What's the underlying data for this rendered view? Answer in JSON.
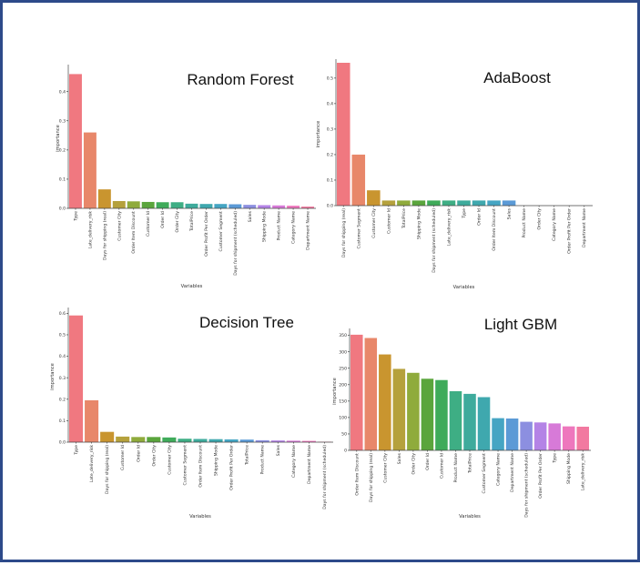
{
  "colors": [
    "#f07880",
    "#e8876a",
    "#c9952f",
    "#b5a13c",
    "#8fab3c",
    "#5aa53c",
    "#3fab5a",
    "#3eae84",
    "#3eab9c",
    "#3fa8ae",
    "#45a5c3",
    "#5b9ad6",
    "#8c8fe0",
    "#b483e6",
    "#d77ad8",
    "#ee77bd",
    "#f279a0"
  ],
  "chart_data": [
    {
      "id": "rf",
      "type": "bar",
      "title": "Random Forest",
      "xlabel": "Variables",
      "ylabel": "importance",
      "ylim": [
        0,
        0.48
      ],
      "yticks": [
        0.0,
        0.1,
        0.2,
        0.3,
        0.4
      ],
      "ytick_labels": [
        "0.0",
        "0.1",
        "0.2",
        "0.3",
        "0.4"
      ],
      "categories": [
        "Type",
        "Late_delivery_risk",
        "Days for shipping (real)",
        "Customer City",
        "Order Item Discount",
        "Customer Id",
        "Order Id",
        "Order City",
        "TotalPrice",
        "Order Profit Per Order",
        "Customer Segment",
        "Days for shipment (scheduled)",
        "Sales",
        "Shipping Mode",
        "Product Name",
        "Category Name",
        "Department Name"
      ],
      "values": [
        0.46,
        0.26,
        0.065,
        0.025,
        0.024,
        0.022,
        0.021,
        0.021,
        0.016,
        0.015,
        0.015,
        0.014,
        0.012,
        0.011,
        0.01,
        0.009,
        0.006
      ],
      "grid": false
    },
    {
      "id": "ada",
      "type": "bar",
      "title": "AdaBoost",
      "xlabel": "Variables",
      "ylabel": "importance",
      "ylim": [
        0,
        0.56
      ],
      "yticks": [
        0.0,
        0.1,
        0.2,
        0.3,
        0.4,
        0.5
      ],
      "ytick_labels": [
        "0.0",
        "0.1",
        "0.2",
        "0.3",
        "0.4",
        "0.5"
      ],
      "categories": [
        "Days for shipping (real)",
        "Customer Segment",
        "Customer City",
        "Customer Id",
        "TotalPrice",
        "Shipping Mode",
        "Days for shipment (scheduled)",
        "Late_delivery_risk",
        "Type",
        "Order Id",
        "Order Item Discount",
        "Sales",
        "Product Name",
        "Order City",
        "Category Name",
        "Order Profit Per Order",
        "Department Name"
      ],
      "values": [
        0.56,
        0.2,
        0.06,
        0.02,
        0.02,
        0.02,
        0.02,
        0.02,
        0.02,
        0.02,
        0.02,
        0.02,
        0.0,
        0.0,
        0.0,
        0.0,
        0.0
      ],
      "grid": false
    },
    {
      "id": "dt",
      "type": "bar",
      "title": "Decision Tree",
      "xlabel": "Variables",
      "ylabel": "importance",
      "ylim": [
        0,
        0.61
      ],
      "yticks": [
        0.0,
        0.1,
        0.2,
        0.3,
        0.4,
        0.5,
        0.6
      ],
      "ytick_labels": [
        "0.0",
        "0.1",
        "0.2",
        "0.3",
        "0.4",
        "0.5",
        "0.6"
      ],
      "categories": [
        "Type",
        "Late_delivery_risk",
        "Days for shipping (real)",
        "Customer Id",
        "Order Id",
        "Order City",
        "Customer City",
        "Customer Segment",
        "Order Item Discount",
        "Shipping Mode",
        "Order Profit Per Order",
        "TotalPrice",
        "Product Name",
        "Sales",
        "Category Name",
        "Department Name",
        "Days for shipment (scheduled)"
      ],
      "values": [
        0.59,
        0.195,
        0.048,
        0.026,
        0.024,
        0.024,
        0.022,
        0.016,
        0.015,
        0.014,
        0.013,
        0.012,
        0.009,
        0.008,
        0.007,
        0.006,
        0.002
      ],
      "grid": false
    },
    {
      "id": "lgbm",
      "type": "bar",
      "title": "Light GBM",
      "xlabel": "Variables",
      "ylabel": "importance",
      "ylim": [
        0,
        360
      ],
      "yticks": [
        0,
        50,
        100,
        150,
        200,
        250,
        300,
        350
      ],
      "ytick_labels": [
        "0",
        "50",
        "100",
        "150",
        "200",
        "250",
        "300",
        "350"
      ],
      "categories": [
        "Order Item Discount",
        "Days for shipping (real)",
        "Customer City",
        "Sales",
        "Order City",
        "Order Id",
        "Customer Id",
        "Product Name",
        "TotalPrice",
        "Customer Segment",
        "Category Name",
        "Department Name",
        "Days for shipment (scheduled)",
        "Order Profit Per Order",
        "Type",
        "Shipping Mode",
        "Late_delivery_risk"
      ],
      "values": [
        352,
        342,
        292,
        248,
        236,
        218,
        214,
        180,
        172,
        162,
        98,
        97,
        87,
        85,
        82,
        73,
        72
      ],
      "grid": false
    }
  ]
}
